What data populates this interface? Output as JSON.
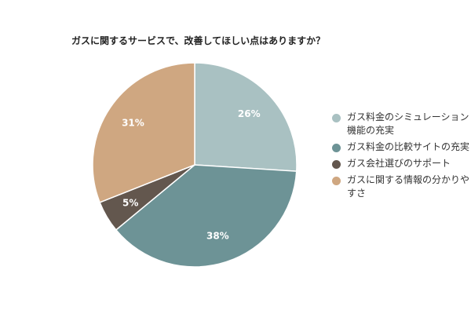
{
  "title": "ガスに関するサービスで、改善してほしい点はありますか？",
  "chart_data": {
    "type": "pie",
    "title": "ガスに関するサービスで、改善してほしい点はありますか？",
    "slices": [
      {
        "label": "ガス料金のシミュレーション機能の充実",
        "value": 26,
        "display": "26%",
        "color": "#a9c1c2"
      },
      {
        "label": "ガス料金の比較サイトの充実",
        "value": 38,
        "display": "38%",
        "color": "#6d9396"
      },
      {
        "label": "ガス会社選びのサポート",
        "value": 5,
        "display": "5%",
        "color": "#63574e"
      },
      {
        "label": "ガスに関する情報の分かりやすさ",
        "value": 31,
        "display": "31%",
        "color": "#cfa781"
      }
    ],
    "legend_position": "right"
  }
}
